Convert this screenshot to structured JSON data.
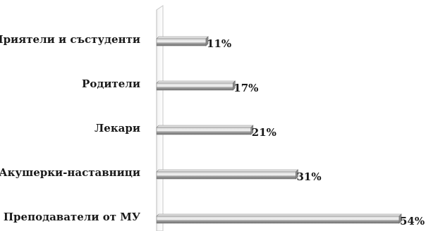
{
  "chart_data": {
    "type": "bar",
    "orientation": "horizontal",
    "categories": [
      "Приятели и състуденти",
      "Родители",
      "Лекари",
      "Акушерки-наставници",
      "Преподаватели от МУ"
    ],
    "values": [
      11,
      17,
      21,
      31,
      54
    ],
    "value_labels": [
      "11%",
      "17%",
      "21%",
      "31%",
      "54%"
    ],
    "xlim": [
      0,
      60
    ],
    "grid": false,
    "legend": "none",
    "bar_color": "#9a9a9a"
  }
}
